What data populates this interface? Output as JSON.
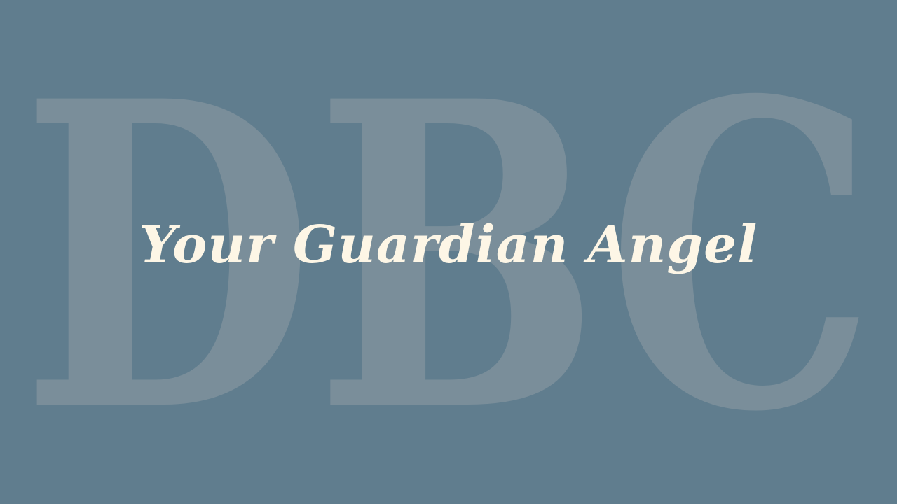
{
  "watermark": {
    "text": "DBC"
  },
  "title": "Your Guardian Angel",
  "colors": {
    "background": "#607d8e",
    "watermark": "#7a8e9a",
    "title": "#fdf6e6"
  }
}
